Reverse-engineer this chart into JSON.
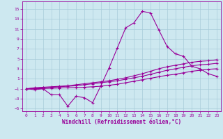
{
  "xlabel": "Windchill (Refroidissement éolien,°C)",
  "background_color": "#cde8f0",
  "grid_color": "#a8ccda",
  "line_color": "#990099",
  "x_values": [
    0,
    1,
    2,
    3,
    4,
    5,
    6,
    7,
    8,
    9,
    10,
    11,
    12,
    13,
    14,
    15,
    16,
    17,
    18,
    19,
    20,
    21,
    22,
    23
  ],
  "line1_y": [
    -1,
    -1.2,
    -1,
    -2.2,
    -2.2,
    -4.5,
    -2.5,
    -2.8,
    -3.8,
    -0.4,
    3.2,
    7.2,
    11.2,
    12.2,
    14.5,
    14.2,
    10.8,
    7.5,
    6.0,
    5.5,
    3.5,
    3.0,
    2.0,
    1.5
  ],
  "line2_y": [
    -1,
    -0.8,
    -0.7,
    -0.6,
    -0.5,
    -0.4,
    -0.2,
    0.0,
    0.2,
    0.4,
    0.6,
    0.9,
    1.2,
    1.6,
    2.0,
    2.5,
    3.0,
    3.4,
    3.7,
    4.0,
    4.3,
    4.5,
    4.6,
    4.8
  ],
  "line3_y": [
    -1,
    -0.9,
    -0.8,
    -0.7,
    -0.6,
    -0.5,
    -0.4,
    -0.2,
    0.0,
    0.2,
    0.4,
    0.6,
    0.9,
    1.2,
    1.5,
    1.9,
    2.3,
    2.7,
    3.0,
    3.3,
    3.6,
    3.8,
    3.9,
    4.1
  ],
  "line4_y": [
    -1,
    -1.0,
    -0.95,
    -0.9,
    -0.85,
    -0.8,
    -0.75,
    -0.7,
    -0.6,
    -0.5,
    -0.3,
    -0.1,
    0.2,
    0.5,
    0.8,
    1.1,
    1.4,
    1.7,
    1.9,
    2.2,
    2.5,
    2.7,
    2.9,
    3.0
  ],
  "ylim": [
    -5.5,
    16.5
  ],
  "xlim": [
    -0.5,
    23.5
  ],
  "yticks": [
    -5,
    -3,
    -1,
    1,
    3,
    5,
    7,
    9,
    11,
    13,
    15
  ],
  "xticks": [
    0,
    1,
    2,
    3,
    4,
    5,
    6,
    7,
    8,
    9,
    10,
    11,
    12,
    13,
    14,
    15,
    16,
    17,
    18,
    19,
    20,
    21,
    22,
    23
  ]
}
